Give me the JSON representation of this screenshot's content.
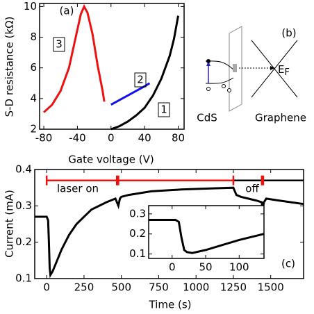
{
  "chart_data": [
    {
      "type": "line",
      "annotation": "(a)",
      "xlabel": "Gate voltage (V)",
      "ylabel": "S-D resistance (kΩ)",
      "xlim": [
        -85,
        87
      ],
      "ylim": [
        2,
        10.2
      ],
      "xticks": [
        -80,
        -40,
        0,
        40,
        80
      ],
      "yticks": [
        2,
        4,
        6,
        8,
        10
      ],
      "series": [
        {
          "name": "3",
          "color": "#ee1111",
          "x": [
            -80,
            -70,
            -60,
            -50,
            -42,
            -36,
            -32,
            -28,
            -22,
            -16,
            -10,
            -8
          ],
          "values": [
            3.1,
            3.6,
            4.5,
            6,
            8,
            9.5,
            10,
            9.6,
            8.2,
            6.2,
            4.5,
            3.8
          ]
        },
        {
          "name": "2",
          "color": "#1111ee",
          "x": [
            0,
            10,
            20,
            30,
            40,
            46
          ],
          "values": [
            3.6,
            3.9,
            4.2,
            4.5,
            4.8,
            5.0
          ]
        },
        {
          "name": "1",
          "color": "#000000",
          "x": [
            0,
            10,
            20,
            30,
            40,
            50,
            60,
            70,
            75,
            80
          ],
          "values": [
            2,
            2.2,
            2.5,
            2.9,
            3.4,
            4.2,
            5.3,
            6.8,
            7.9,
            9.4
          ]
        }
      ]
    },
    {
      "type": "line",
      "annotation": "(c)",
      "xlabel": "Time (s)",
      "ylabel": "Current (mA)",
      "xlim": [
        -80,
        1720
      ],
      "ylim": [
        0.1,
        0.4
      ],
      "xticks": [
        0,
        250,
        500,
        750,
        1000,
        1250,
        1500
      ],
      "yticks": [
        0.1,
        0.2,
        0.3,
        0.4
      ],
      "series": [
        {
          "color": "#000000",
          "x": [
            -80,
            0,
            10,
            15,
            20,
            25,
            40,
            60,
            100,
            150,
            200,
            300,
            400,
            460,
            470,
            480,
            490,
            500,
            550,
            700,
            900,
            1100,
            1250,
            1260,
            1270,
            1300,
            1400,
            1440,
            1445,
            1455,
            1470,
            1550,
            1720
          ],
          "values": [
            0.27,
            0.27,
            0.26,
            0.2,
            0.13,
            0.11,
            0.12,
            0.14,
            0.18,
            0.22,
            0.25,
            0.29,
            0.31,
            0.32,
            0.31,
            0.3,
            0.32,
            0.325,
            0.33,
            0.34,
            0.345,
            0.348,
            0.35,
            0.34,
            0.33,
            0.325,
            0.315,
            0.31,
            0.29,
            0.31,
            0.32,
            0.315,
            0.305
          ]
        },
        {
          "name": "laser on",
          "color": "#ee1111",
          "x": [
            0,
            1250
          ],
          "values": [
            0.37,
            0.37
          ]
        },
        {
          "name": "off",
          "color": "#000000",
          "x": [
            1250,
            1720
          ],
          "values": [
            0.37,
            0.37
          ]
        }
      ],
      "laser_marks": [
        0,
        470,
        480,
        1250,
        1440,
        1450
      ]
    },
    {
      "type": "line",
      "xlim": [
        -35,
        137
      ],
      "ylim": [
        0.078,
        0.341
      ],
      "xticks": [
        0,
        50,
        100
      ],
      "yticks": [
        0.1,
        0.2,
        0.3
      ],
      "series": [
        {
          "color": "#000000",
          "x": [
            -35,
            0,
            5,
            10,
            14,
            18,
            22,
            30,
            50,
            80,
            100,
            137
          ],
          "values": [
            0.27,
            0.27,
            0.27,
            0.26,
            0.18,
            0.12,
            0.11,
            0.105,
            0.12,
            0.15,
            0.17,
            0.2
          ]
        }
      ]
    }
  ],
  "diagram": {
    "label": "(b)",
    "left": "CdS",
    "right": "Graphene",
    "level": "E",
    "level_sub": "F"
  }
}
